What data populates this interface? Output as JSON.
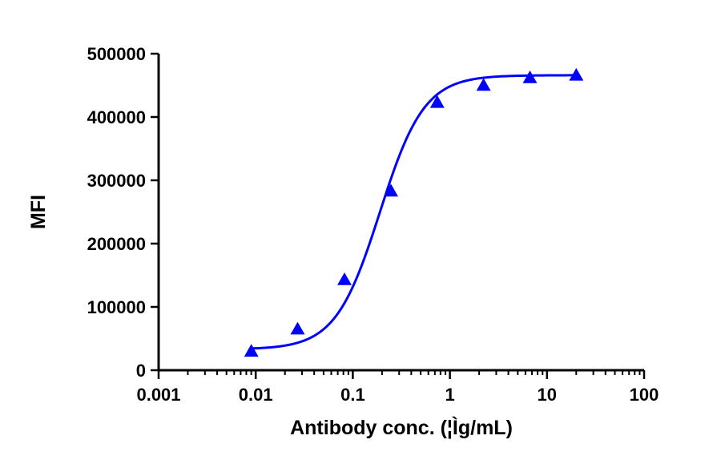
{
  "chart_data": {
    "type": "scatter",
    "title": "",
    "xlabel": "Antibody conc. (¦Ìg/mL)",
    "ylabel": "MFI",
    "xscale": "log",
    "xlim": [
      0.001,
      100
    ],
    "ylim": [
      0,
      500000
    ],
    "xticks": [
      {
        "value": 0.001,
        "label": "0.001"
      },
      {
        "value": 0.01,
        "label": "0.01"
      },
      {
        "value": 0.1,
        "label": "0.1"
      },
      {
        "value": 1,
        "label": "1"
      },
      {
        "value": 10,
        "label": "10"
      },
      {
        "value": 100,
        "label": "100"
      }
    ],
    "yticks": [
      {
        "value": 0,
        "label": "0"
      },
      {
        "value": 100000,
        "label": "100000"
      },
      {
        "value": 200000,
        "label": "200000"
      },
      {
        "value": 300000,
        "label": "300000"
      },
      {
        "value": 400000,
        "label": "400000"
      },
      {
        "value": 500000,
        "label": "500000"
      }
    ],
    "grid": false,
    "legend": "none",
    "series": [
      {
        "marker": "triangle",
        "color": "#0000FF",
        "fit": "4PL sigmoid",
        "points": [
          {
            "x": 0.009,
            "y": 30000
          },
          {
            "x": 0.027,
            "y": 65000
          },
          {
            "x": 0.082,
            "y": 143000
          },
          {
            "x": 0.247,
            "y": 283000
          },
          {
            "x": 0.741,
            "y": 423000
          },
          {
            "x": 2.22,
            "y": 450000
          },
          {
            "x": 6.67,
            "y": 462000
          },
          {
            "x": 20,
            "y": 466000
          }
        ]
      }
    ]
  }
}
